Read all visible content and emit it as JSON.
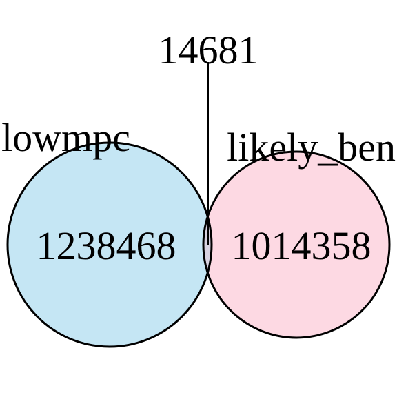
{
  "diagram": {
    "type": "venn",
    "sets": [
      {
        "label": "lowmpc",
        "count": "1238468",
        "color": "#c5e6f4"
      },
      {
        "label": "likely_ben",
        "count": "1014358",
        "color": "#fdd9e3"
      }
    ],
    "intersection": {
      "count": "14681",
      "color": "#d7d2e0"
    },
    "outline_color": "#000000"
  }
}
